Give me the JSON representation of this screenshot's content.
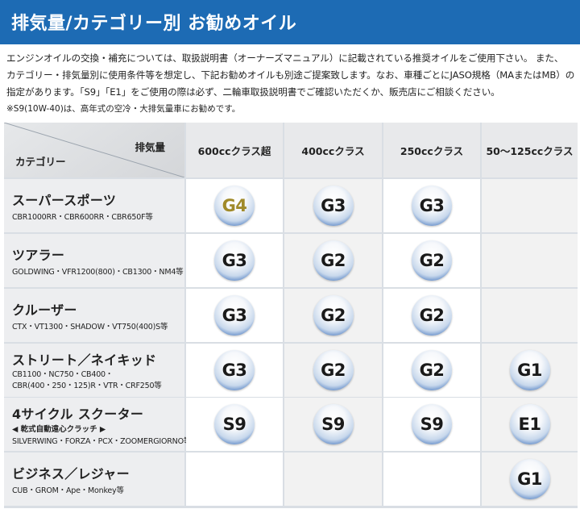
{
  "title": "排気量/カテゴリー別 お勧めオイル",
  "intro": [
    "エンジンオイルの交換・補充については、取扱説明書（オーナーズマニュアル）に記載されている推奨オイルをご使用下さい。 また、",
    "カテゴリー・排気量別に使用条件等を想定し、下記お勧めオイルも別途ご提案致します。なお、車種ごとにJASO規格（MAまたはMB）の",
    "指定があります。「S9」「E1」をご使用の際は必ず、二輪車取扱説明書でご確認いただくか、販売店にご相談ください。"
  ],
  "note": "※S9(10W-40)は、高年式の空冷・大排気量車にお勧めです。",
  "header": {
    "displacement_label": "排気量",
    "category_label": "カテゴリー",
    "columns": [
      "600ccクラス超",
      "400ccクラス",
      "250ccクラス",
      "50〜125ccクラス"
    ]
  },
  "rows": [
    {
      "name": "スーパースポーツ",
      "sub": "CBR1000RR・CBR600RR・CBR650F等",
      "sub2": "",
      "oils": [
        "G4",
        "G3",
        "G3",
        ""
      ]
    },
    {
      "name": "ツアラー",
      "sub": "GOLDWING・VFR1200(800)・CB1300・NM4等",
      "sub2": "",
      "oils": [
        "G3",
        "G2",
        "G2",
        ""
      ]
    },
    {
      "name": "クルーザー",
      "sub": "CTX・VT1300・SHADOW・VT750(400)S等",
      "sub2": "",
      "oils": [
        "G3",
        "G2",
        "G2",
        ""
      ]
    },
    {
      "name": "ストリート／ネイキッド",
      "sub": "CB1100・NC750・CB400・",
      "sub2": "CBR(400・250・125)R・VTR・CRF250等",
      "oils": [
        "G3",
        "G2",
        "G2",
        "G1"
      ]
    },
    {
      "name": "4サイクル スクーター",
      "sub": "◀ 乾式自動遠心クラッチ ▶",
      "sub2": "SILVERWING・FORZA・PCX・ZOOMERGIORNO等",
      "oils": [
        "S9",
        "S9",
        "S9",
        "E1"
      ]
    },
    {
      "name": "ビジネス／レジャー",
      "sub": "CUB・GROM・Ape・Monkey等",
      "sub2": "",
      "oils": [
        "",
        "",
        "",
        "G1"
      ]
    }
  ],
  "colors": {
    "title_bar": "#1d6bb4",
    "badge_ring": "#2f66b6",
    "g4_text": "#a08a2a"
  }
}
